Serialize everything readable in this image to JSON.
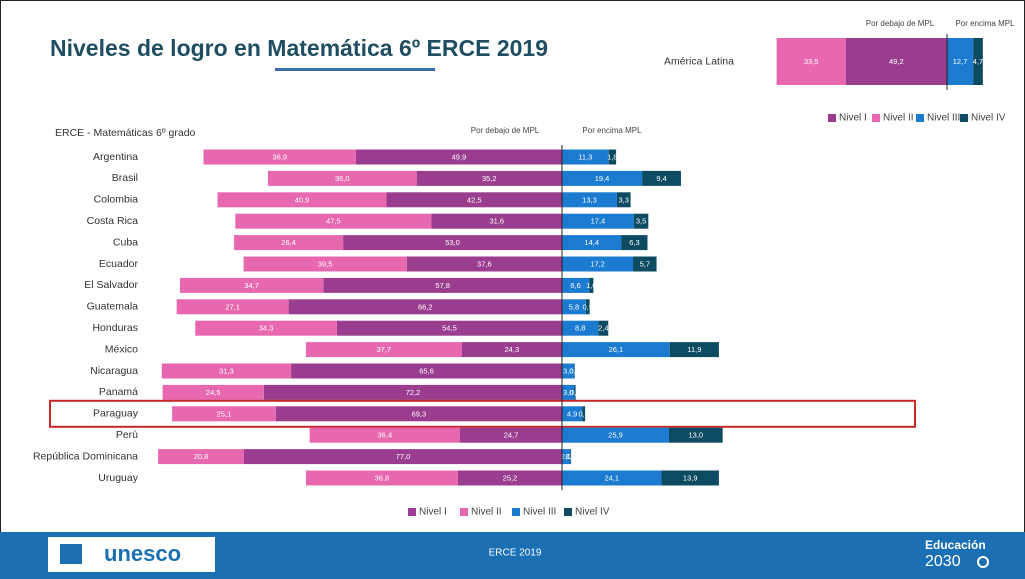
{
  "title": "Niveles de logro en Matemática 6º ERCE 2019",
  "footer": {
    "logo": "unesco",
    "text": "ERCE 2019",
    "brand": "Educación",
    "brand_year": "2030"
  },
  "chart_data": [
    {
      "type": "diverging-bar",
      "negative_label": "Por debajo de MPL",
      "positive_label": "Por encima MPL",
      "categories": [
        "América Latina"
      ],
      "series": [
        {
          "name": "Nivel I",
          "color": "#9b3d8f",
          "side": "negative",
          "values": [
            49.2
          ],
          "value_labels": [
            "49,2"
          ]
        },
        {
          "name": "Nivel II",
          "color": "#e868b0",
          "side": "negative",
          "values": [
            33.5
          ],
          "value_labels": [
            "33,5"
          ]
        },
        {
          "name": "Nivel III",
          "color": "#1a7bd0",
          "side": "positive",
          "values": [
            12.7
          ],
          "value_labels": [
            "12,7"
          ]
        },
        {
          "name": "Nivel IV",
          "color": "#0d4b63",
          "side": "positive",
          "values": [
            4.7
          ],
          "value_labels": [
            "4,7"
          ]
        }
      ]
    },
    {
      "type": "diverging-bar",
      "title": "ERCE - Matemáticas 6º grado",
      "negative_label": "Por debajo de MPL",
      "positive_label": "Por encima MPL",
      "highlight": "Paraguay",
      "categories": [
        "Argentina",
        "Brasil",
        "Colombia",
        "Costa Rica",
        "Cuba",
        "Ecuador",
        "El Salvador",
        "Guatemala",
        "Honduras",
        "México",
        "Nicaragua",
        "Panamá",
        "Paraguay",
        "Perú",
        "República Dominicana",
        "Uruguay"
      ],
      "series": [
        {
          "name": "Nivel I",
          "color": "#9b3d8f",
          "side": "negative",
          "values": [
            49.9,
            35.2,
            42.5,
            31.6,
            53.0,
            37.6,
            57.8,
            66.2,
            54.5,
            24.3,
            65.6,
            72.2,
            69.3,
            24.7,
            77.0,
            25.2
          ],
          "value_labels": [
            "49,9",
            "35,2",
            "42,5",
            "31,6",
            "53,0",
            "37,6",
            "57,8",
            "66,2",
            "54,5",
            "24,3",
            "65,6",
            "72,2",
            "69,3",
            "24,7",
            "77,0",
            "25,2"
          ]
        },
        {
          "name": "Nivel II",
          "color": "#e868b0",
          "side": "negative",
          "values": [
            36.9,
            36.0,
            40.9,
            47.5,
            26.4,
            39.5,
            34.7,
            27.1,
            34.3,
            37.7,
            31.3,
            24.5,
            25.1,
            36.4,
            20.8,
            36.8
          ],
          "value_labels": [
            "36,9",
            "36,0",
            "40,9",
            "47,5",
            "26,4",
            "39,5",
            "34,7",
            "27,1",
            "34,3",
            "37,7",
            "31,3",
            "24,5",
            "25,1",
            "36,4",
            "20,8",
            "36,8"
          ]
        },
        {
          "name": "Nivel III",
          "color": "#1a7bd0",
          "side": "positive",
          "values": [
            11.3,
            19.4,
            13.3,
            17.4,
            14.4,
            17.2,
            6.6,
            5.8,
            8.8,
            26.1,
            3.0,
            3.0,
            4.9,
            25.9,
            2.0,
            24.1
          ],
          "value_labels": [
            "11,3",
            "19,4",
            "13,3",
            "17,4",
            "14,4",
            "17,2",
            "6,6",
            "5,8",
            "8,8",
            "26,1",
            "3,0",
            "3,0",
            "4,9",
            "25,9",
            "2,0",
            "24,1"
          ]
        },
        {
          "name": "Nivel IV",
          "color": "#0d4b63",
          "side": "positive",
          "values": [
            1.8,
            9.4,
            3.3,
            3.5,
            6.3,
            5.7,
            1.0,
            0.9,
            2.4,
            11.9,
            0.1,
            0.3,
            0.7,
            13.0,
            0.2,
            13.9
          ],
          "value_labels": [
            "1,8",
            "9,4",
            "3,3",
            "3,5",
            "6,3",
            "5,7",
            "1,0",
            "0,9",
            "2,4",
            "11,9",
            "0,1",
            "0,3",
            "0,7",
            "13,0",
            "0,2",
            "13,9"
          ]
        }
      ]
    }
  ]
}
